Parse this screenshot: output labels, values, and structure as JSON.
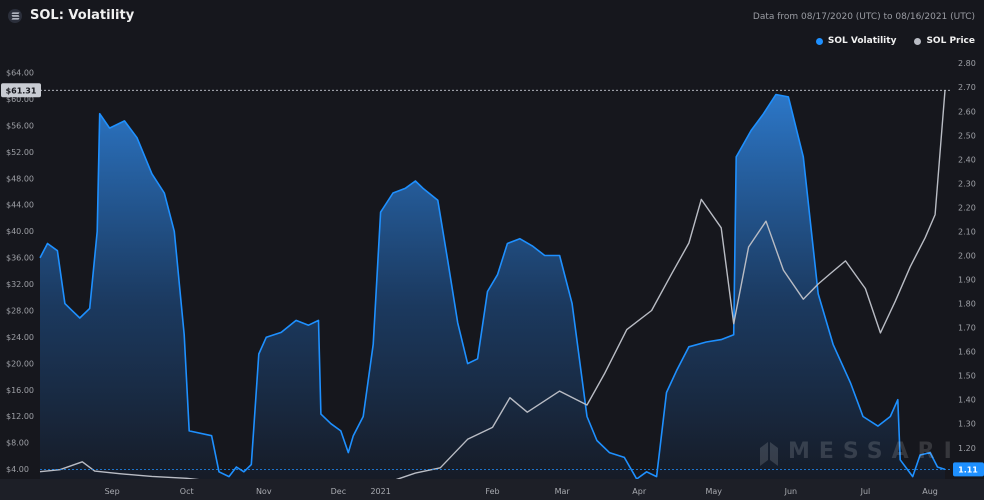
{
  "header": {
    "title": "SOL: Volatility",
    "subtitle": "Data from 08/17/2020 (UTC) to 08/16/2021 (UTC)",
    "icon": "solana-logo-icon"
  },
  "legend": [
    {
      "label": "SOL Volatility",
      "color": "#1e90ff"
    },
    {
      "label": "SOL Price",
      "color": "#b9bcc4"
    }
  ],
  "watermark": "MESSARI",
  "badges": {
    "left_value": "$61.31",
    "right_value": "1.11"
  },
  "chart_data": {
    "type": "line",
    "x_start": "2020-08-17",
    "x_end": "2021-08-16",
    "x_tick_labels": [
      "Sep",
      "Oct",
      "Nov",
      "Dec",
      "2021",
      "Feb",
      "Mar",
      "Apr",
      "May",
      "Jun",
      "Jul",
      "Aug"
    ],
    "y_left_ticks": [
      "$4.00",
      "$8.00",
      "$12.00",
      "$16.00",
      "$20.00",
      "$24.00",
      "$28.00",
      "$32.00",
      "$36.00",
      "$40.00",
      "$44.00",
      "$48.00",
      "$52.00",
      "$56.00",
      "$60.00",
      "$64.00"
    ],
    "y_left_range": [
      2.5,
      66.5
    ],
    "y_right_ticks": [
      "1.20",
      "1.30",
      "1.40",
      "1.50",
      "1.60",
      "1.70",
      "1.80",
      "1.90",
      "2.00",
      "2.10",
      "2.20",
      "2.30",
      "2.40",
      "2.50",
      "2.60",
      "2.70",
      "2.80"
    ],
    "y_right_range": [
      1.07,
      2.83
    ],
    "series": [
      {
        "name": "SOL Volatility",
        "axis": "right",
        "color": "#1e90ff",
        "style": "area",
        "points": [
          [
            "2020-08-17",
            1.99
          ],
          [
            "2020-08-20",
            2.05
          ],
          [
            "2020-08-24",
            2.02
          ],
          [
            "2020-08-27",
            1.8
          ],
          [
            "2020-08-30",
            1.77
          ],
          [
            "2020-09-02",
            1.74
          ],
          [
            "2020-09-06",
            1.78
          ],
          [
            "2020-09-09",
            2.1
          ],
          [
            "2020-09-10",
            2.59
          ],
          [
            "2020-09-14",
            2.53
          ],
          [
            "2020-09-20",
            2.56
          ],
          [
            "2020-09-25",
            2.49
          ],
          [
            "2020-10-01",
            2.34
          ],
          [
            "2020-10-06",
            2.26
          ],
          [
            "2020-10-10",
            2.1
          ],
          [
            "2020-10-14",
            1.67
          ],
          [
            "2020-10-16",
            1.27
          ],
          [
            "2020-10-25",
            1.25
          ],
          [
            "2020-10-28",
            1.1
          ],
          [
            "2020-11-01",
            1.08
          ],
          [
            "2020-11-04",
            1.12
          ],
          [
            "2020-11-07",
            1.1
          ],
          [
            "2020-11-10",
            1.13
          ],
          [
            "2020-11-13",
            1.59
          ],
          [
            "2020-11-16",
            1.66
          ],
          [
            "2020-11-22",
            1.68
          ],
          [
            "2020-11-28",
            1.73
          ],
          [
            "2020-12-03",
            1.71
          ],
          [
            "2020-12-07",
            1.73
          ],
          [
            "2020-12-08",
            1.34
          ],
          [
            "2020-12-12",
            1.3
          ],
          [
            "2020-12-16",
            1.27
          ],
          [
            "2020-12-19",
            1.18
          ],
          [
            "2020-12-21",
            1.25
          ],
          [
            "2020-12-25",
            1.33
          ],
          [
            "2020-12-29",
            1.63
          ],
          [
            "2021-01-01",
            2.18
          ],
          [
            "2021-01-06",
            2.26
          ],
          [
            "2021-01-11",
            2.28
          ],
          [
            "2021-01-15",
            2.31
          ],
          [
            "2021-01-18",
            2.28
          ],
          [
            "2021-01-24",
            2.23
          ],
          [
            "2021-01-28",
            1.98
          ],
          [
            "2021-02-01",
            1.72
          ],
          [
            "2021-02-05",
            1.55
          ],
          [
            "2021-02-09",
            1.57
          ],
          [
            "2021-02-13",
            1.85
          ],
          [
            "2021-02-17",
            1.92
          ],
          [
            "2021-02-21",
            2.05
          ],
          [
            "2021-02-26",
            2.07
          ],
          [
            "2021-03-03",
            2.04
          ],
          [
            "2021-03-08",
            2.0
          ],
          [
            "2021-03-14",
            2.0
          ],
          [
            "2021-03-19",
            1.8
          ],
          [
            "2021-03-25",
            1.33
          ],
          [
            "2021-03-29",
            1.23
          ],
          [
            "2021-04-03",
            1.18
          ],
          [
            "2021-04-09",
            1.16
          ],
          [
            "2021-04-14",
            1.07
          ],
          [
            "2021-04-18",
            1.1
          ],
          [
            "2021-04-22",
            1.08
          ],
          [
            "2021-04-26",
            1.43
          ],
          [
            "2021-04-30",
            1.52
          ],
          [
            "2021-05-05",
            1.62
          ],
          [
            "2021-05-12",
            1.64
          ],
          [
            "2021-05-18",
            1.65
          ],
          [
            "2021-05-23",
            1.67
          ],
          [
            "2021-05-24",
            2.41
          ],
          [
            "2021-05-30",
            2.52
          ],
          [
            "2021-06-04",
            2.59
          ],
          [
            "2021-06-09",
            2.67
          ],
          [
            "2021-06-14",
            2.66
          ],
          [
            "2021-06-20",
            2.41
          ],
          [
            "2021-06-26",
            1.84
          ],
          [
            "2021-07-02",
            1.63
          ],
          [
            "2021-07-09",
            1.47
          ],
          [
            "2021-07-14",
            1.33
          ],
          [
            "2021-07-20",
            1.29
          ],
          [
            "2021-07-25",
            1.33
          ],
          [
            "2021-07-28",
            1.4
          ],
          [
            "2021-07-29",
            1.15
          ],
          [
            "2021-08-03",
            1.08
          ],
          [
            "2021-08-06",
            1.17
          ],
          [
            "2021-08-10",
            1.18
          ],
          [
            "2021-08-13",
            1.12
          ],
          [
            "2021-08-16",
            1.11
          ]
        ]
      },
      {
        "name": "SOL Price",
        "axis": "left",
        "color": "#b9bcc4",
        "style": "line",
        "points": [
          [
            "2020-08-17",
            3.6
          ],
          [
            "2020-08-25",
            3.9
          ],
          [
            "2020-09-03",
            5.1
          ],
          [
            "2020-09-08",
            3.7
          ],
          [
            "2020-09-18",
            3.3
          ],
          [
            "2020-10-01",
            2.9
          ],
          [
            "2020-10-15",
            2.6
          ],
          [
            "2020-11-01",
            1.9
          ],
          [
            "2020-11-15",
            2.2
          ],
          [
            "2020-12-01",
            1.8
          ],
          [
            "2020-12-15",
            1.6
          ],
          [
            "2021-01-01",
            1.6
          ],
          [
            "2021-01-15",
            3.4
          ],
          [
            "2021-01-25",
            4.2
          ],
          [
            "2021-02-05",
            8.5
          ],
          [
            "2021-02-15",
            10.3
          ],
          [
            "2021-02-22",
            14.8
          ],
          [
            "2021-03-01",
            12.6
          ],
          [
            "2021-03-14",
            15.8
          ],
          [
            "2021-03-25",
            13.7
          ],
          [
            "2021-04-01",
            18.4
          ],
          [
            "2021-04-10",
            25.1
          ],
          [
            "2021-04-20",
            28.0
          ],
          [
            "2021-04-28",
            33.5
          ],
          [
            "2021-05-05",
            38.2
          ],
          [
            "2021-05-10",
            44.8
          ],
          [
            "2021-05-18",
            40.5
          ],
          [
            "2021-05-23",
            26.0
          ],
          [
            "2021-05-29",
            37.6
          ],
          [
            "2021-06-05",
            41.5
          ],
          [
            "2021-06-12",
            34.1
          ],
          [
            "2021-06-20",
            29.7
          ],
          [
            "2021-06-26",
            32.0
          ],
          [
            "2021-07-01",
            33.6
          ],
          [
            "2021-07-07",
            35.5
          ],
          [
            "2021-07-15",
            31.3
          ],
          [
            "2021-07-21",
            24.6
          ],
          [
            "2021-07-27",
            29.4
          ],
          [
            "2021-08-02",
            34.6
          ],
          [
            "2021-08-08",
            39.0
          ],
          [
            "2021-08-12",
            42.5
          ],
          [
            "2021-08-16",
            61.31
          ]
        ]
      }
    ]
  }
}
